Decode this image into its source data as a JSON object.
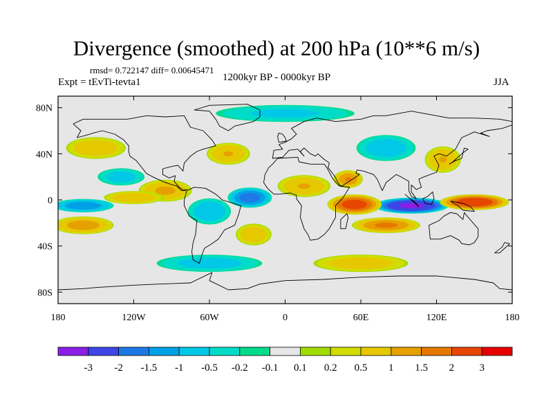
{
  "header": {
    "title": "Divergence (smoothed) at 200 hPa (10**6 m/s)",
    "stats": "rmsd= 0.722147 diff= 0.00645471",
    "experiment": "Expt = tEvTi-tevta1",
    "period": "1200kyr BP - 0000kyr BP",
    "season": "JJA"
  },
  "axes": {
    "lat_ticks": [
      {
        "label": "80N",
        "value": 80
      },
      {
        "label": "40N",
        "value": 40
      },
      {
        "label": "0",
        "value": 0
      },
      {
        "label": "40S",
        "value": -40
      },
      {
        "label": "80S",
        "value": -80
      }
    ],
    "lon_ticks": [
      {
        "label": "180",
        "value": -180
      },
      {
        "label": "120W",
        "value": -120
      },
      {
        "label": "60W",
        "value": -60
      },
      {
        "label": "0",
        "value": 0
      },
      {
        "label": "60E",
        "value": 60
      },
      {
        "label": "120E",
        "value": 120
      },
      {
        "label": "180",
        "value": 180
      }
    ],
    "lon_range": [
      -180,
      180
    ],
    "lat_range": [
      -90,
      90
    ]
  },
  "colorbar": {
    "colors": [
      "#8a1ee6",
      "#3c46e6",
      "#1e78e6",
      "#00a0e6",
      "#00c8e6",
      "#00dcc8",
      "#00dc8c",
      "#e6e6e6",
      "#a0dc00",
      "#d2dc00",
      "#e6c800",
      "#e6a000",
      "#e67800",
      "#e64600",
      "#e60000"
    ],
    "labels": [
      "-3",
      "-2",
      "-1.5",
      "-1",
      "-0.5",
      "-0.2",
      "-0.1",
      "0.1",
      "0.2",
      "0.5",
      "1",
      "1.5",
      "2",
      "3"
    ]
  },
  "field_anomalies": [
    {
      "name": "east-indian-ocean-convergence",
      "lon": 100,
      "lat": -5,
      "rx": 30,
      "ry": 7,
      "v": -3.2
    },
    {
      "name": "maritime-continent-divergence",
      "lon": 150,
      "lat": -2,
      "rx": 28,
      "ry": 7,
      "v": 2.6
    },
    {
      "name": "western-indian-ocean-divergence",
      "lon": 55,
      "lat": -4,
      "rx": 22,
      "ry": 9,
      "v": 2.4
    },
    {
      "name": "south-indian-ocean-band",
      "lon": 80,
      "lat": -22,
      "rx": 28,
      "ry": 7,
      "v": 1.6
    },
    {
      "name": "equatorial-atlantic-convergence",
      "lon": -28,
      "lat": 2,
      "rx": 18,
      "ry": 9,
      "v": -1.8
    },
    {
      "name": "east-pacific-convergence",
      "lon": -160,
      "lat": -5,
      "rx": 25,
      "ry": 6,
      "v": -1.4
    },
    {
      "name": "south-pacific-divergence",
      "lon": -160,
      "lat": -22,
      "rx": 25,
      "ry": 8,
      "v": 1.3
    },
    {
      "name": "central-america-divergence",
      "lon": -95,
      "lat": 8,
      "rx": 22,
      "ry": 10,
      "v": 1.1
    },
    {
      "name": "north-africa-divergence",
      "lon": 15,
      "lat": 12,
      "rx": 22,
      "ry": 10,
      "v": 1.0
    },
    {
      "name": "arabia-divergence",
      "lon": 50,
      "lat": 18,
      "rx": 12,
      "ry": 8,
      "v": 1.5
    },
    {
      "name": "asia-convergence",
      "lon": 80,
      "lat": 45,
      "rx": 25,
      "ry": 12,
      "v": -0.8
    },
    {
      "name": "east-asia-divergence",
      "lon": 125,
      "lat": 35,
      "rx": 15,
      "ry": 12,
      "v": 1.0
    },
    {
      "name": "north-pacific-divergence",
      "lon": -150,
      "lat": 45,
      "rx": 25,
      "ry": 10,
      "v": 0.9
    },
    {
      "name": "north-atlantic-divergence",
      "lon": -45,
      "lat": 40,
      "rx": 18,
      "ry": 10,
      "v": 1.0
    },
    {
      "name": "south-america-convergence",
      "lon": -60,
      "lat": -10,
      "rx": 18,
      "ry": 12,
      "v": -0.9
    },
    {
      "name": "south-atlantic-divergence",
      "lon": -25,
      "lat": -30,
      "rx": 15,
      "ry": 10,
      "v": 0.9
    },
    {
      "name": "southern-ocean-convergence",
      "lon": -60,
      "lat": -55,
      "rx": 45,
      "ry": 8,
      "v": -0.7
    },
    {
      "name": "southern-ocean-divergence",
      "lon": 60,
      "lat": -55,
      "rx": 40,
      "ry": 8,
      "v": 0.8
    },
    {
      "name": "arctic-convergence",
      "lon": 0,
      "lat": 75,
      "rx": 60,
      "ry": 8,
      "v": -0.6
    },
    {
      "name": "central-pacific-north",
      "lon": -130,
      "lat": 20,
      "rx": 20,
      "ry": 8,
      "v": -0.7
    },
    {
      "name": "equatorial-pacific-divergence",
      "lon": -120,
      "lat": 2,
      "rx": 25,
      "ry": 6,
      "v": 0.9
    }
  ],
  "coastlines": [
    {
      "name": "north-america-outline",
      "pts": [
        [
          -168,
          66
        ],
        [
          -160,
          70
        ],
        [
          -140,
          70
        ],
        [
          -125,
          70
        ],
        [
          -110,
          73
        ],
        [
          -95,
          72
        ],
        [
          -80,
          73
        ],
        [
          -75,
          63
        ],
        [
          -65,
          60
        ],
        [
          -58,
          52
        ],
        [
          -55,
          47
        ],
        [
          -65,
          44
        ],
        [
          -70,
          42
        ],
        [
          -75,
          38
        ],
        [
          -80,
          32
        ],
        [
          -81,
          25
        ],
        [
          -85,
          30
        ],
        [
          -90,
          29
        ],
        [
          -97,
          27
        ],
        [
          -97,
          22
        ],
        [
          -92,
          19
        ],
        [
          -87,
          21
        ],
        [
          -88,
          16
        ],
        [
          -84,
          11
        ],
        [
          -80,
          8
        ],
        [
          -78,
          9
        ],
        [
          -82,
          8
        ],
        [
          -86,
          12
        ],
        [
          -92,
          14
        ],
        [
          -97,
          16
        ],
        [
          -105,
          20
        ],
        [
          -110,
          23
        ],
        [
          -115,
          30
        ],
        [
          -118,
          34
        ],
        [
          -123,
          38
        ],
        [
          -124,
          42
        ],
        [
          -124,
          47
        ],
        [
          -128,
          52
        ],
        [
          -135,
          57
        ],
        [
          -145,
          60
        ],
        [
          -152,
          58
        ],
        [
          -158,
          56
        ],
        [
          -165,
          54
        ],
        [
          -162,
          60
        ],
        [
          -166,
          64
        ],
        [
          -168,
          66
        ]
      ]
    },
    {
      "name": "south-america-outline",
      "pts": [
        [
          -78,
          8
        ],
        [
          -72,
          11
        ],
        [
          -63,
          10
        ],
        [
          -55,
          5
        ],
        [
          -50,
          0
        ],
        [
          -44,
          -2
        ],
        [
          -35,
          -5
        ],
        [
          -37,
          -13
        ],
        [
          -40,
          -22
        ],
        [
          -48,
          -26
        ],
        [
          -53,
          -34
        ],
        [
          -58,
          -38
        ],
        [
          -64,
          -42
        ],
        [
          -66,
          -48
        ],
        [
          -68,
          -55
        ],
        [
          -73,
          -52
        ],
        [
          -74,
          -45
        ],
        [
          -73,
          -37
        ],
        [
          -71,
          -30
        ],
        [
          -70,
          -18
        ],
        [
          -76,
          -14
        ],
        [
          -80,
          -5
        ],
        [
          -80,
          0
        ],
        [
          -78,
          8
        ]
      ]
    },
    {
      "name": "greenland-outline",
      "pts": [
        [
          -60,
          77
        ],
        [
          -72,
          78
        ],
        [
          -60,
          82
        ],
        [
          -30,
          83
        ],
        [
          -20,
          78
        ],
        [
          -20,
          72
        ],
        [
          -25,
          68
        ],
        [
          -40,
          64
        ],
        [
          -45,
          60
        ],
        [
          -52,
          64
        ],
        [
          -55,
          70
        ],
        [
          -60,
          77
        ]
      ]
    },
    {
      "name": "eurasia-outline",
      "pts": [
        [
          -10,
          36
        ],
        [
          -9,
          43
        ],
        [
          -2,
          44
        ],
        [
          -5,
          48
        ],
        [
          0,
          50
        ],
        [
          5,
          53
        ],
        [
          9,
          57
        ],
        [
          5,
          62
        ],
        [
          15,
          68
        ],
        [
          25,
          71
        ],
        [
          40,
          68
        ],
        [
          60,
          70
        ],
        [
          70,
          73
        ],
        [
          80,
          73
        ],
        [
          100,
          77
        ],
        [
          115,
          74
        ],
        [
          130,
          71
        ],
        [
          150,
          71
        ],
        [
          170,
          70
        ],
        [
          180,
          68
        ],
        [
          180,
          65
        ],
        [
          172,
          62
        ],
        [
          160,
          60
        ],
        [
          155,
          58
        ],
        [
          162,
          55
        ],
        [
          150,
          59
        ],
        [
          140,
          54
        ],
        [
          135,
          44
        ],
        [
          128,
          38
        ],
        [
          122,
          40
        ],
        [
          118,
          38
        ],
        [
          122,
          30
        ],
        [
          120,
          24
        ],
        [
          110,
          20
        ],
        [
          106,
          18
        ],
        [
          108,
          11
        ],
        [
          104,
          9
        ],
        [
          100,
          13
        ],
        [
          100,
          7
        ],
        [
          104,
          1
        ],
        [
          100,
          3
        ],
        [
          98,
          8
        ],
        [
          98,
          16
        ],
        [
          92,
          20
        ],
        [
          88,
          22
        ],
        [
          80,
          15
        ],
        [
          77,
          8
        ],
        [
          73,
          18
        ],
        [
          70,
          22
        ],
        [
          62,
          25
        ],
        [
          57,
          26
        ],
        [
          56,
          23
        ],
        [
          59,
          22
        ],
        [
          52,
          17
        ],
        [
          45,
          12
        ],
        [
          43,
          13
        ],
        [
          39,
          21
        ],
        [
          34,
          28
        ],
        [
          35,
          32
        ],
        [
          30,
          36
        ],
        [
          26,
          40
        ],
        [
          24,
          38
        ],
        [
          20,
          40
        ],
        [
          15,
          45
        ],
        [
          12,
          42
        ],
        [
          15,
          38
        ],
        [
          10,
          44
        ],
        [
          3,
          43
        ],
        [
          -2,
          37
        ],
        [
          -10,
          36
        ]
      ]
    },
    {
      "name": "africa-outline",
      "pts": [
        [
          -6,
          36
        ],
        [
          10,
          37
        ],
        [
          11,
          33
        ],
        [
          20,
          31
        ],
        [
          31,
          31
        ],
        [
          33,
          28
        ],
        [
          38,
          18
        ],
        [
          43,
          12
        ],
        [
          51,
          11
        ],
        [
          46,
          2
        ],
        [
          40,
          -5
        ],
        [
          40,
          -15
        ],
        [
          35,
          -25
        ],
        [
          31,
          -30
        ],
        [
          26,
          -34
        ],
        [
          20,
          -35
        ],
        [
          18,
          -30
        ],
        [
          15,
          -25
        ],
        [
          12,
          -15
        ],
        [
          13,
          -5
        ],
        [
          9,
          1
        ],
        [
          9,
          4
        ],
        [
          4,
          6
        ],
        [
          -5,
          5
        ],
        [
          -9,
          5
        ],
        [
          -14,
          10
        ],
        [
          -17,
          15
        ],
        [
          -16,
          22
        ],
        [
          -13,
          28
        ],
        [
          -10,
          31
        ],
        [
          -6,
          36
        ]
      ]
    },
    {
      "name": "madagascar-outline",
      "pts": [
        [
          44,
          -25
        ],
        [
          48,
          -25
        ],
        [
          50,
          -15
        ],
        [
          49,
          -12
        ],
        [
          44,
          -17
        ],
        [
          44,
          -25
        ]
      ]
    },
    {
      "name": "australia-outline",
      "pts": [
        [
          114,
          -22
        ],
        [
          115,
          -34
        ],
        [
          123,
          -34
        ],
        [
          131,
          -31
        ],
        [
          138,
          -35
        ],
        [
          140,
          -38
        ],
        [
          146,
          -39
        ],
        [
          150,
          -37
        ],
        [
          153,
          -32
        ],
        [
          153,
          -25
        ],
        [
          145,
          -15
        ],
        [
          142,
          -11
        ],
        [
          141,
          -17
        ],
        [
          136,
          -12
        ],
        [
          131,
          -11
        ],
        [
          126,
          -14
        ],
        [
          122,
          -18
        ],
        [
          114,
          -22
        ]
      ]
    },
    {
      "name": "antarctica-outline",
      "pts": [
        [
          -180,
          -78
        ],
        [
          -160,
          -77
        ],
        [
          -150,
          -76
        ],
        [
          -120,
          -74
        ],
        [
          -100,
          -73
        ],
        [
          -75,
          -72
        ],
        [
          -60,
          -64
        ],
        [
          -58,
          -63
        ],
        [
          -60,
          -70
        ],
        [
          -45,
          -78
        ],
        [
          -30,
          -77
        ],
        [
          -20,
          -73
        ],
        [
          0,
          -70
        ],
        [
          30,
          -69
        ],
        [
          60,
          -67
        ],
        [
          90,
          -66
        ],
        [
          120,
          -66
        ],
        [
          150,
          -69
        ],
        [
          165,
          -72
        ],
        [
          170,
          -77
        ],
        [
          180,
          -78
        ]
      ]
    },
    {
      "name": "new-guinea-outline",
      "pts": [
        [
          131,
          -1
        ],
        [
          141,
          -3
        ],
        [
          147,
          -6
        ],
        [
          150,
          -10
        ],
        [
          141,
          -9
        ],
        [
          137,
          -5
        ],
        [
          131,
          -1
        ]
      ]
    },
    {
      "name": "borneo-outline",
      "pts": [
        [
          109,
          1
        ],
        [
          111,
          -3
        ],
        [
          116,
          -4
        ],
        [
          118,
          1
        ],
        [
          117,
          7
        ],
        [
          113,
          3
        ],
        [
          109,
          1
        ]
      ]
    },
    {
      "name": "sumatra-outline",
      "pts": [
        [
          95,
          5
        ],
        [
          106,
          -6
        ],
        [
          103,
          -2
        ],
        [
          98,
          2
        ],
        [
          95,
          5
        ]
      ]
    },
    {
      "name": "japan-outline",
      "pts": [
        [
          130,
          31
        ],
        [
          135,
          34
        ],
        [
          140,
          36
        ],
        [
          141,
          41
        ],
        [
          142,
          45
        ],
        [
          145,
          44
        ],
        [
          140,
          40
        ],
        [
          137,
          37
        ],
        [
          133,
          33
        ],
        [
          130,
          31
        ]
      ]
    },
    {
      "name": "great-britain-outline",
      "pts": [
        [
          -5,
          50
        ],
        [
          1,
          51
        ],
        [
          0,
          54
        ],
        [
          -2,
          57
        ],
        [
          -5,
          58
        ],
        [
          -6,
          55
        ],
        [
          -5,
          50
        ]
      ]
    },
    {
      "name": "new-zealand-outline",
      "pts": [
        [
          166,
          -46
        ],
        [
          172,
          -41
        ],
        [
          174,
          -37
        ],
        [
          178,
          -38
        ],
        [
          174,
          -42
        ],
        [
          170,
          -46
        ],
        [
          166,
          -46
        ]
      ]
    }
  ]
}
